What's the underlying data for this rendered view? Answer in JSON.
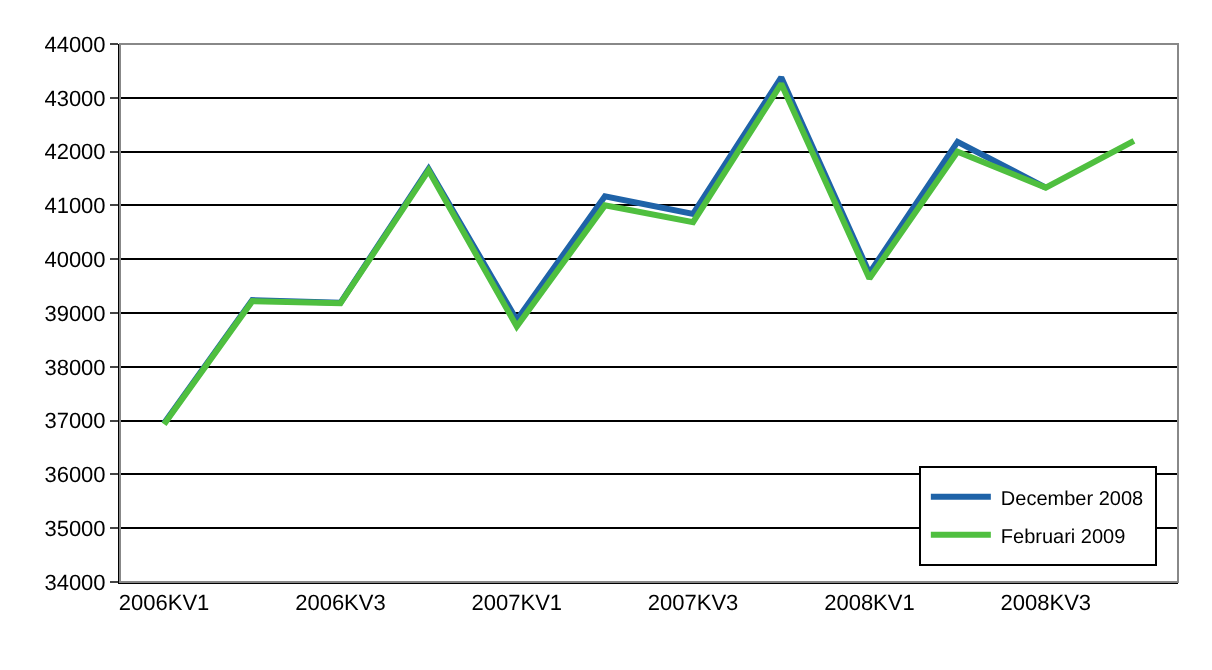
{
  "chart_data": {
    "type": "line",
    "categories": [
      "2006KV1",
      null,
      "2006KV3",
      null,
      "2007KV1",
      null,
      "2007KV3",
      null,
      "2008KV1",
      null,
      "2008KV3",
      null
    ],
    "series": [
      {
        "name": "December 2008",
        "color": "#1f63a8",
        "values": [
          36950,
          39240,
          39190,
          41680,
          38870,
          41170,
          40840,
          43380,
          39740,
          42180,
          41330,
          null
        ]
      },
      {
        "name": "Februari 2009",
        "color": "#4fbf3f",
        "values": [
          36930,
          39220,
          39180,
          41650,
          38750,
          41000,
          40690,
          43260,
          39640,
          42000,
          41330,
          42200
        ]
      }
    ],
    "ylim": [
      34000,
      44000
    ],
    "yticks": [
      34000,
      35000,
      36000,
      37000,
      38000,
      39000,
      40000,
      41000,
      42000,
      43000,
      44000
    ],
    "grid": "y",
    "legend": "bottom right",
    "marker": "none",
    "line_style": "solid"
  }
}
